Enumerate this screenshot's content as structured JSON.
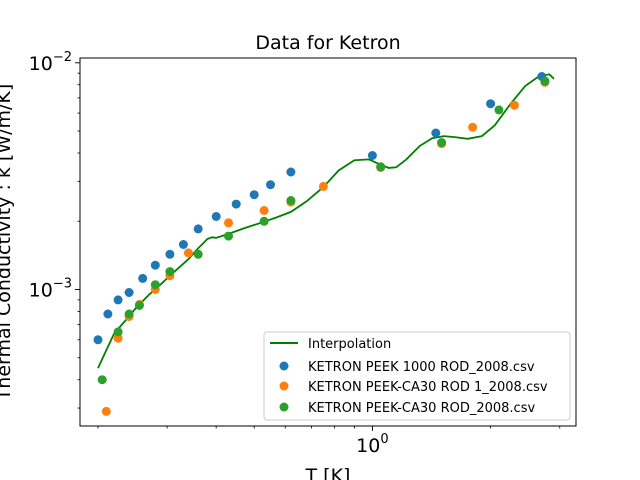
{
  "chart_data": {
    "type": "scatter",
    "title": "Data for Ketron",
    "xlabel": "T [K]",
    "ylabel": "Thermal Conductivity : k [W/m/K]",
    "xscale": "log",
    "yscale": "log",
    "xlim": [
      0.18,
      3.3
    ],
    "ylim": [
      0.00025,
      0.0105
    ],
    "x_tick_labels": [
      {
        "value": 1,
        "base": "10",
        "exp": "0"
      }
    ],
    "y_tick_labels": [
      {
        "value": 0.001,
        "base": "10",
        "exp": "−3"
      },
      {
        "value": 0.01,
        "base": "10",
        "exp": "−2"
      }
    ],
    "grid": false,
    "legend": {
      "placement": "lower right"
    },
    "series": [
      {
        "name": "Interpolation",
        "kind": "line",
        "color": "#008000",
        "x": [
          0.2,
          0.21,
          0.22,
          0.235,
          0.25,
          0.27,
          0.29,
          0.31,
          0.34,
          0.36,
          0.38,
          0.39,
          0.4,
          0.43,
          0.47,
          0.52,
          0.57,
          0.62,
          0.68,
          0.75,
          0.82,
          0.9,
          0.98,
          1.05,
          1.1,
          1.15,
          1.22,
          1.32,
          1.42,
          1.52,
          1.62,
          1.75,
          1.9,
          2.05,
          2.25,
          2.45,
          2.65,
          2.82,
          2.9
        ],
        "y": [
          0.00045,
          0.00054,
          0.00064,
          0.00073,
          0.00083,
          0.00095,
          0.00106,
          0.00118,
          0.00136,
          0.00152,
          0.00167,
          0.0017,
          0.00169,
          0.00176,
          0.00186,
          0.00197,
          0.00208,
          0.0022,
          0.00245,
          0.00283,
          0.00335,
          0.00372,
          0.00375,
          0.00355,
          0.00344,
          0.00346,
          0.00375,
          0.0043,
          0.00465,
          0.00475,
          0.0047,
          0.00462,
          0.00475,
          0.0053,
          0.0066,
          0.0079,
          0.0087,
          0.0089,
          0.0085
        ]
      },
      {
        "name": "KETRON PEEK 1000 ROD_2008.csv",
        "kind": "scatter",
        "color": "#1f77b4",
        "x": [
          0.2,
          0.212,
          0.225,
          0.24,
          0.26,
          0.28,
          0.305,
          0.33,
          0.36,
          0.4,
          0.45,
          0.5,
          0.55,
          0.62,
          1.0,
          1.45,
          2.0,
          2.7
        ],
        "y": [
          0.0006,
          0.00078,
          0.0009,
          0.00097,
          0.00112,
          0.00128,
          0.00143,
          0.00158,
          0.00185,
          0.0021,
          0.00238,
          0.00262,
          0.0029,
          0.0033,
          0.0039,
          0.0049,
          0.0066,
          0.0087
        ]
      },
      {
        "name": "KETRON PEEK-CA30 ROD 1_2008.csv",
        "kind": "scatter",
        "color": "#ff7f0e",
        "x": [
          0.21,
          0.225,
          0.24,
          0.255,
          0.28,
          0.305,
          0.34,
          0.43,
          0.53,
          0.62,
          0.75,
          1.05,
          1.5,
          1.8,
          2.3,
          2.75
        ],
        "y": [
          0.00029,
          0.00061,
          0.00076,
          0.00086,
          0.001,
          0.00115,
          0.00145,
          0.00197,
          0.00223,
          0.00243,
          0.00285,
          0.00345,
          0.0044,
          0.0052,
          0.0065,
          0.0082
        ]
      },
      {
        "name": "KETRON PEEK-CA30 ROD_2008.csv",
        "kind": "scatter",
        "color": "#2ca02c",
        "x": [
          0.205,
          0.225,
          0.24,
          0.255,
          0.28,
          0.305,
          0.36,
          0.43,
          0.53,
          0.62,
          1.05,
          1.5,
          2.1,
          2.75
        ],
        "y": [
          0.0004,
          0.00065,
          0.00078,
          0.00085,
          0.00105,
          0.0012,
          0.00143,
          0.00172,
          0.002,
          0.00247,
          0.00348,
          0.00445,
          0.0062,
          0.0083
        ]
      }
    ]
  }
}
